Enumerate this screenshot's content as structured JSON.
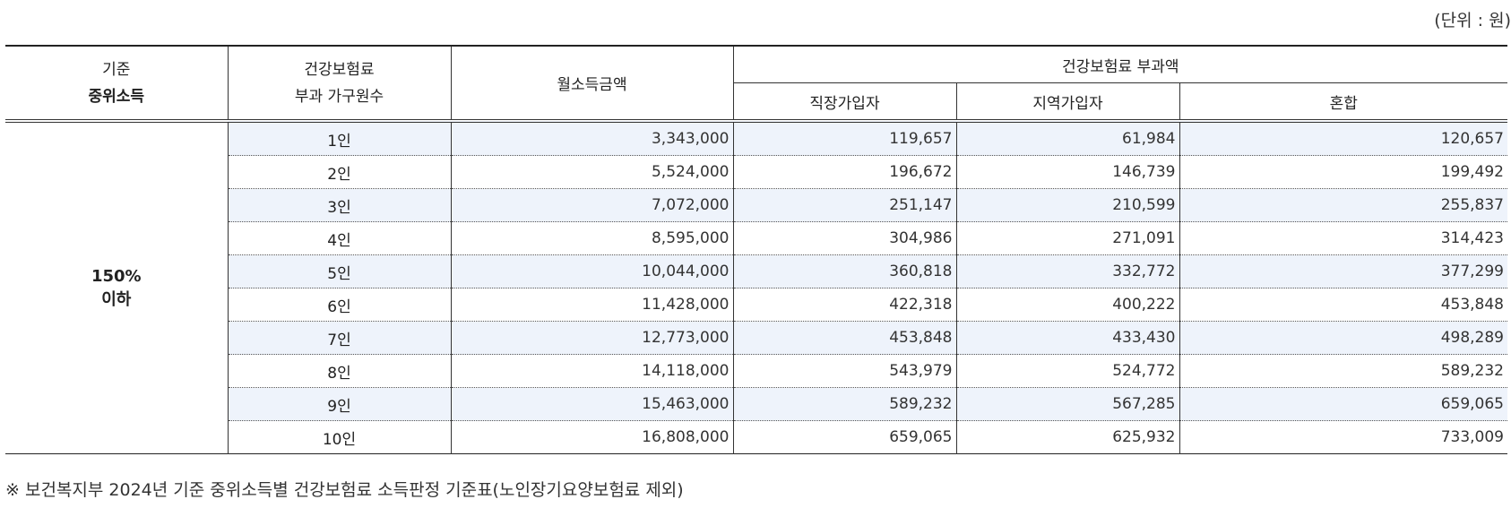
{
  "unit_label": "(단위 : 원)",
  "headers": {
    "col1_line1": "기준",
    "col1_line2": "중위소득",
    "col2_line1": "건강보험료",
    "col2_line2": "부과 가구원수",
    "col3": "월소득금액",
    "group": "건강보험료 부과액",
    "sub1": "직장가입자",
    "sub2": "지역가입자",
    "sub3": "혼합"
  },
  "band": {
    "line1": "150%",
    "line2": "이하"
  },
  "rows": [
    {
      "people": "1인",
      "income": "3,343,000",
      "workplace": "119,657",
      "regional": "61,984",
      "mixed": "120,657"
    },
    {
      "people": "2인",
      "income": "5,524,000",
      "workplace": "196,672",
      "regional": "146,739",
      "mixed": "199,492"
    },
    {
      "people": "3인",
      "income": "7,072,000",
      "workplace": "251,147",
      "regional": "210,599",
      "mixed": "255,837"
    },
    {
      "people": "4인",
      "income": "8,595,000",
      "workplace": "304,986",
      "regional": "271,091",
      "mixed": "314,423"
    },
    {
      "people": "5인",
      "income": "10,044,000",
      "workplace": "360,818",
      "regional": "332,772",
      "mixed": "377,299"
    },
    {
      "people": "6인",
      "income": "11,428,000",
      "workplace": "422,318",
      "regional": "400,222",
      "mixed": "453,848"
    },
    {
      "people": "7인",
      "income": "12,773,000",
      "workplace": "453,848",
      "regional": "433,430",
      "mixed": "498,289"
    },
    {
      "people": "8인",
      "income": "14,118,000",
      "workplace": "543,979",
      "regional": "524,772",
      "mixed": "589,232"
    },
    {
      "people": "9인",
      "income": "15,463,000",
      "workplace": "589,232",
      "regional": "567,285",
      "mixed": "659,065"
    },
    {
      "people": "10인",
      "income": "16,808,000",
      "workplace": "659,065",
      "regional": "625,932",
      "mixed": "733,009"
    }
  ],
  "footnote": "※ 보건복지부 2024년 기준 중위소득별 건강보험료 소득판정 기준표(노인장기요양보험료 제외)",
  "colors": {
    "row_shade": "#eef3fb",
    "rule": "#222222"
  }
}
